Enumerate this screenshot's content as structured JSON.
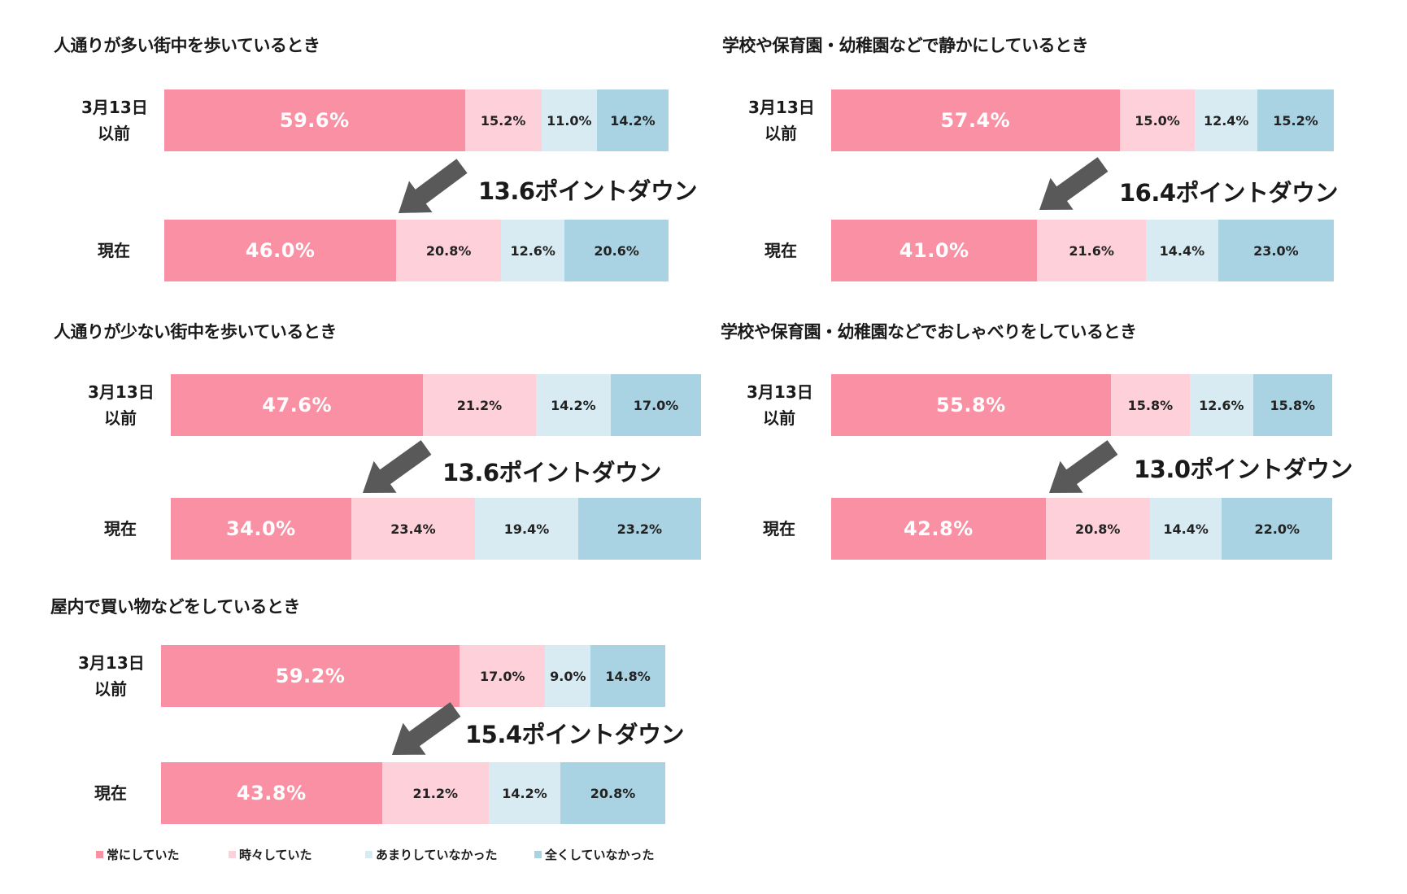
{
  "colors": {
    "always": "#f990a4",
    "sometimes": "#fdd0da",
    "rarely": "#d8ebf2",
    "never": "#a9d3e3",
    "arrow": "#595959"
  },
  "legend": [
    "常にしていた",
    "時々していた",
    "あまりしていなかった",
    "全くしていなかった"
  ],
  "row_labels": {
    "before_line1": "3月13日",
    "before_line2": "以前",
    "now": "現在"
  },
  "chart_data": [
    {
      "type": "bar",
      "orientation": "horizontal-stacked",
      "title": "人通りが多い街中を歩いているとき",
      "categories": [
        "3月13日以前",
        "現在"
      ],
      "series": [
        {
          "name": "常にしていた",
          "values": [
            59.6,
            46.0
          ],
          "labels": [
            "59.6%",
            "46.0%"
          ]
        },
        {
          "name": "時々していた",
          "values": [
            15.2,
            20.8
          ],
          "labels": [
            "15.2%",
            "20.8%"
          ]
        },
        {
          "name": "あまりしていなかった",
          "values": [
            11.0,
            12.6
          ],
          "labels": [
            "11.0%",
            "12.6%"
          ]
        },
        {
          "name": "全くしていなかった",
          "values": [
            14.2,
            20.6
          ],
          "labels": [
            "14.2%",
            "20.6%"
          ]
        }
      ],
      "annotation": "13.6ポイントダウン"
    },
    {
      "type": "bar",
      "orientation": "horizontal-stacked",
      "title": "学校や保育園・幼稚園などで静かにしているとき",
      "categories": [
        "3月13日以前",
        "現在"
      ],
      "series": [
        {
          "name": "常にしていた",
          "values": [
            57.4,
            41.0
          ],
          "labels": [
            "57.4%",
            "41.0%"
          ]
        },
        {
          "name": "時々していた",
          "values": [
            15.0,
            21.6
          ],
          "labels": [
            "15.0%",
            "21.6%"
          ]
        },
        {
          "name": "あまりしていなかった",
          "values": [
            12.4,
            14.4
          ],
          "labels": [
            "12.4%",
            "14.4%"
          ]
        },
        {
          "name": "全くしていなかった",
          "values": [
            15.2,
            23.0
          ],
          "labels": [
            "15.2%",
            "23.0%"
          ]
        }
      ],
      "annotation": "16.4ポイントダウン"
    },
    {
      "type": "bar",
      "orientation": "horizontal-stacked",
      "title": "人通りが少ない街中を歩いているとき",
      "categories": [
        "3月13日以前",
        "現在"
      ],
      "series": [
        {
          "name": "常にしていた",
          "values": [
            47.6,
            34.0
          ],
          "labels": [
            "47.6%",
            "34.0%"
          ]
        },
        {
          "name": "時々していた",
          "values": [
            21.2,
            23.4
          ],
          "labels": [
            "21.2%",
            "23.4%"
          ]
        },
        {
          "name": "あまりしていなかった",
          "values": [
            14.2,
            19.4
          ],
          "labels": [
            "14.2%",
            "19.4%"
          ]
        },
        {
          "name": "全くしていなかった",
          "values": [
            17.0,
            23.2
          ],
          "labels": [
            "17.0%",
            "23.2%"
          ]
        }
      ],
      "annotation": "13.6ポイントダウン"
    },
    {
      "type": "bar",
      "orientation": "horizontal-stacked",
      "title": "学校や保育園・幼稚園などでおしゃべりをしているとき",
      "categories": [
        "3月13日以前",
        "現在"
      ],
      "series": [
        {
          "name": "常にしていた",
          "values": [
            55.8,
            42.8
          ],
          "labels": [
            "55.8%",
            "42.8%"
          ]
        },
        {
          "name": "時々していた",
          "values": [
            15.8,
            20.8
          ],
          "labels": [
            "15.8%",
            "20.8%"
          ]
        },
        {
          "name": "あまりしていなかった",
          "values": [
            12.6,
            14.4
          ],
          "labels": [
            "12.6%",
            "14.4%"
          ]
        },
        {
          "name": "全くしていなかった",
          "values": [
            15.8,
            22.0
          ],
          "labels": [
            "15.8%",
            "22.0%"
          ]
        }
      ],
      "annotation": "13.0ポイントダウン"
    },
    {
      "type": "bar",
      "orientation": "horizontal-stacked",
      "title": "屋内で買い物などをしているとき",
      "categories": [
        "3月13日以前",
        "現在"
      ],
      "series": [
        {
          "name": "常にしていた",
          "values": [
            59.2,
            43.8
          ],
          "labels": [
            "59.2%",
            "43.8%"
          ]
        },
        {
          "name": "時々していた",
          "values": [
            17.0,
            21.2
          ],
          "labels": [
            "17.0%",
            "21.2%"
          ]
        },
        {
          "name": "あまりしていなかった",
          "values": [
            9.0,
            14.2
          ],
          "labels": [
            "9.0%",
            "14.2%"
          ]
        },
        {
          "name": "全くしていなかった",
          "values": [
            14.8,
            20.8
          ],
          "labels": [
            "14.8%",
            "20.8%"
          ]
        }
      ],
      "annotation": "15.4ポイントダウン"
    }
  ]
}
